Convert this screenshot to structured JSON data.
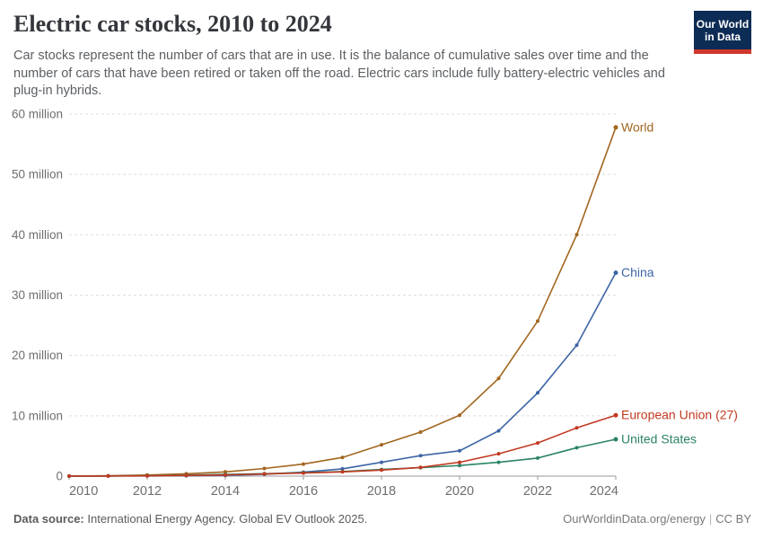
{
  "header": {
    "title": "Electric car stocks, 2010 to 2024",
    "subtitle": "Car stocks represent the number of cars that are in use. It is the balance of cumulative sales over time and the number of cars that have been retired or taken off the road. Electric cars include fully battery-electric vehicles and plug-in hybrids.",
    "logo": {
      "line1": "Our World",
      "line2": "in Data"
    }
  },
  "footer": {
    "source_label": "Data source:",
    "source_text": " International Energy Agency. Global EV Outlook 2025.",
    "url_text": "OurWorldinData.org/energy",
    "separator": "|",
    "license": "CC BY"
  },
  "colors": {
    "logo_navy": "#0d2c55",
    "logo_red": "#d0382e",
    "gridline": "#dedede",
    "axis": "#999999",
    "tick_label": "#6e6e6e",
    "world": "#a2661f",
    "china": "#3d64a5",
    "european_union": "#c13a21",
    "united_states": "#2c8465"
  },
  "chart_data": {
    "type": "line",
    "title": "Electric car stocks, 2010 to 2024",
    "xlabel": "",
    "ylabel": "",
    "x": [
      2010,
      2011,
      2012,
      2013,
      2014,
      2015,
      2016,
      2017,
      2018,
      2019,
      2020,
      2021,
      2022,
      2023,
      2024
    ],
    "xlim": [
      2010,
      2024
    ],
    "ylim": [
      0,
      60
    ],
    "unit": "million",
    "grid": "dashed horizontal",
    "legend_position": "right-of-line-endpoints",
    "yticks": [
      {
        "value": 0,
        "label": "0"
      },
      {
        "value": 10,
        "label": "10 million"
      },
      {
        "value": 20,
        "label": "20 million"
      },
      {
        "value": 30,
        "label": "30 million"
      },
      {
        "value": 40,
        "label": "40 million"
      },
      {
        "value": 50,
        "label": "50 million"
      },
      {
        "value": 60,
        "label": "60 million"
      }
    ],
    "xticks": [
      2010,
      2012,
      2014,
      2016,
      2018,
      2020,
      2022,
      2024
    ],
    "series": [
      {
        "name": "World",
        "color": "#a2661f",
        "values": [
          0.02,
          0.06,
          0.18,
          0.38,
          0.7,
          1.26,
          2.0,
          3.1,
          5.2,
          7.3,
          10.1,
          16.2,
          25.7,
          40.0,
          57.8
        ]
      },
      {
        "name": "China",
        "color": "#3d64a5",
        "values": [
          0.01,
          0.02,
          0.03,
          0.06,
          0.12,
          0.31,
          0.65,
          1.2,
          2.3,
          3.4,
          4.2,
          7.5,
          13.8,
          21.7,
          33.7
        ]
      },
      {
        "name": "European Union (27)",
        "color": "#c13a21",
        "values": [
          0.01,
          0.02,
          0.05,
          0.11,
          0.2,
          0.35,
          0.5,
          0.7,
          1.0,
          1.45,
          2.3,
          3.7,
          5.5,
          8.0,
          10.1
        ]
      },
      {
        "name": "United States",
        "color": "#2c8465",
        "values": [
          0.0,
          0.02,
          0.07,
          0.17,
          0.29,
          0.4,
          0.56,
          0.76,
          1.1,
          1.4,
          1.75,
          2.3,
          3.0,
          4.7,
          6.1
        ]
      }
    ]
  }
}
